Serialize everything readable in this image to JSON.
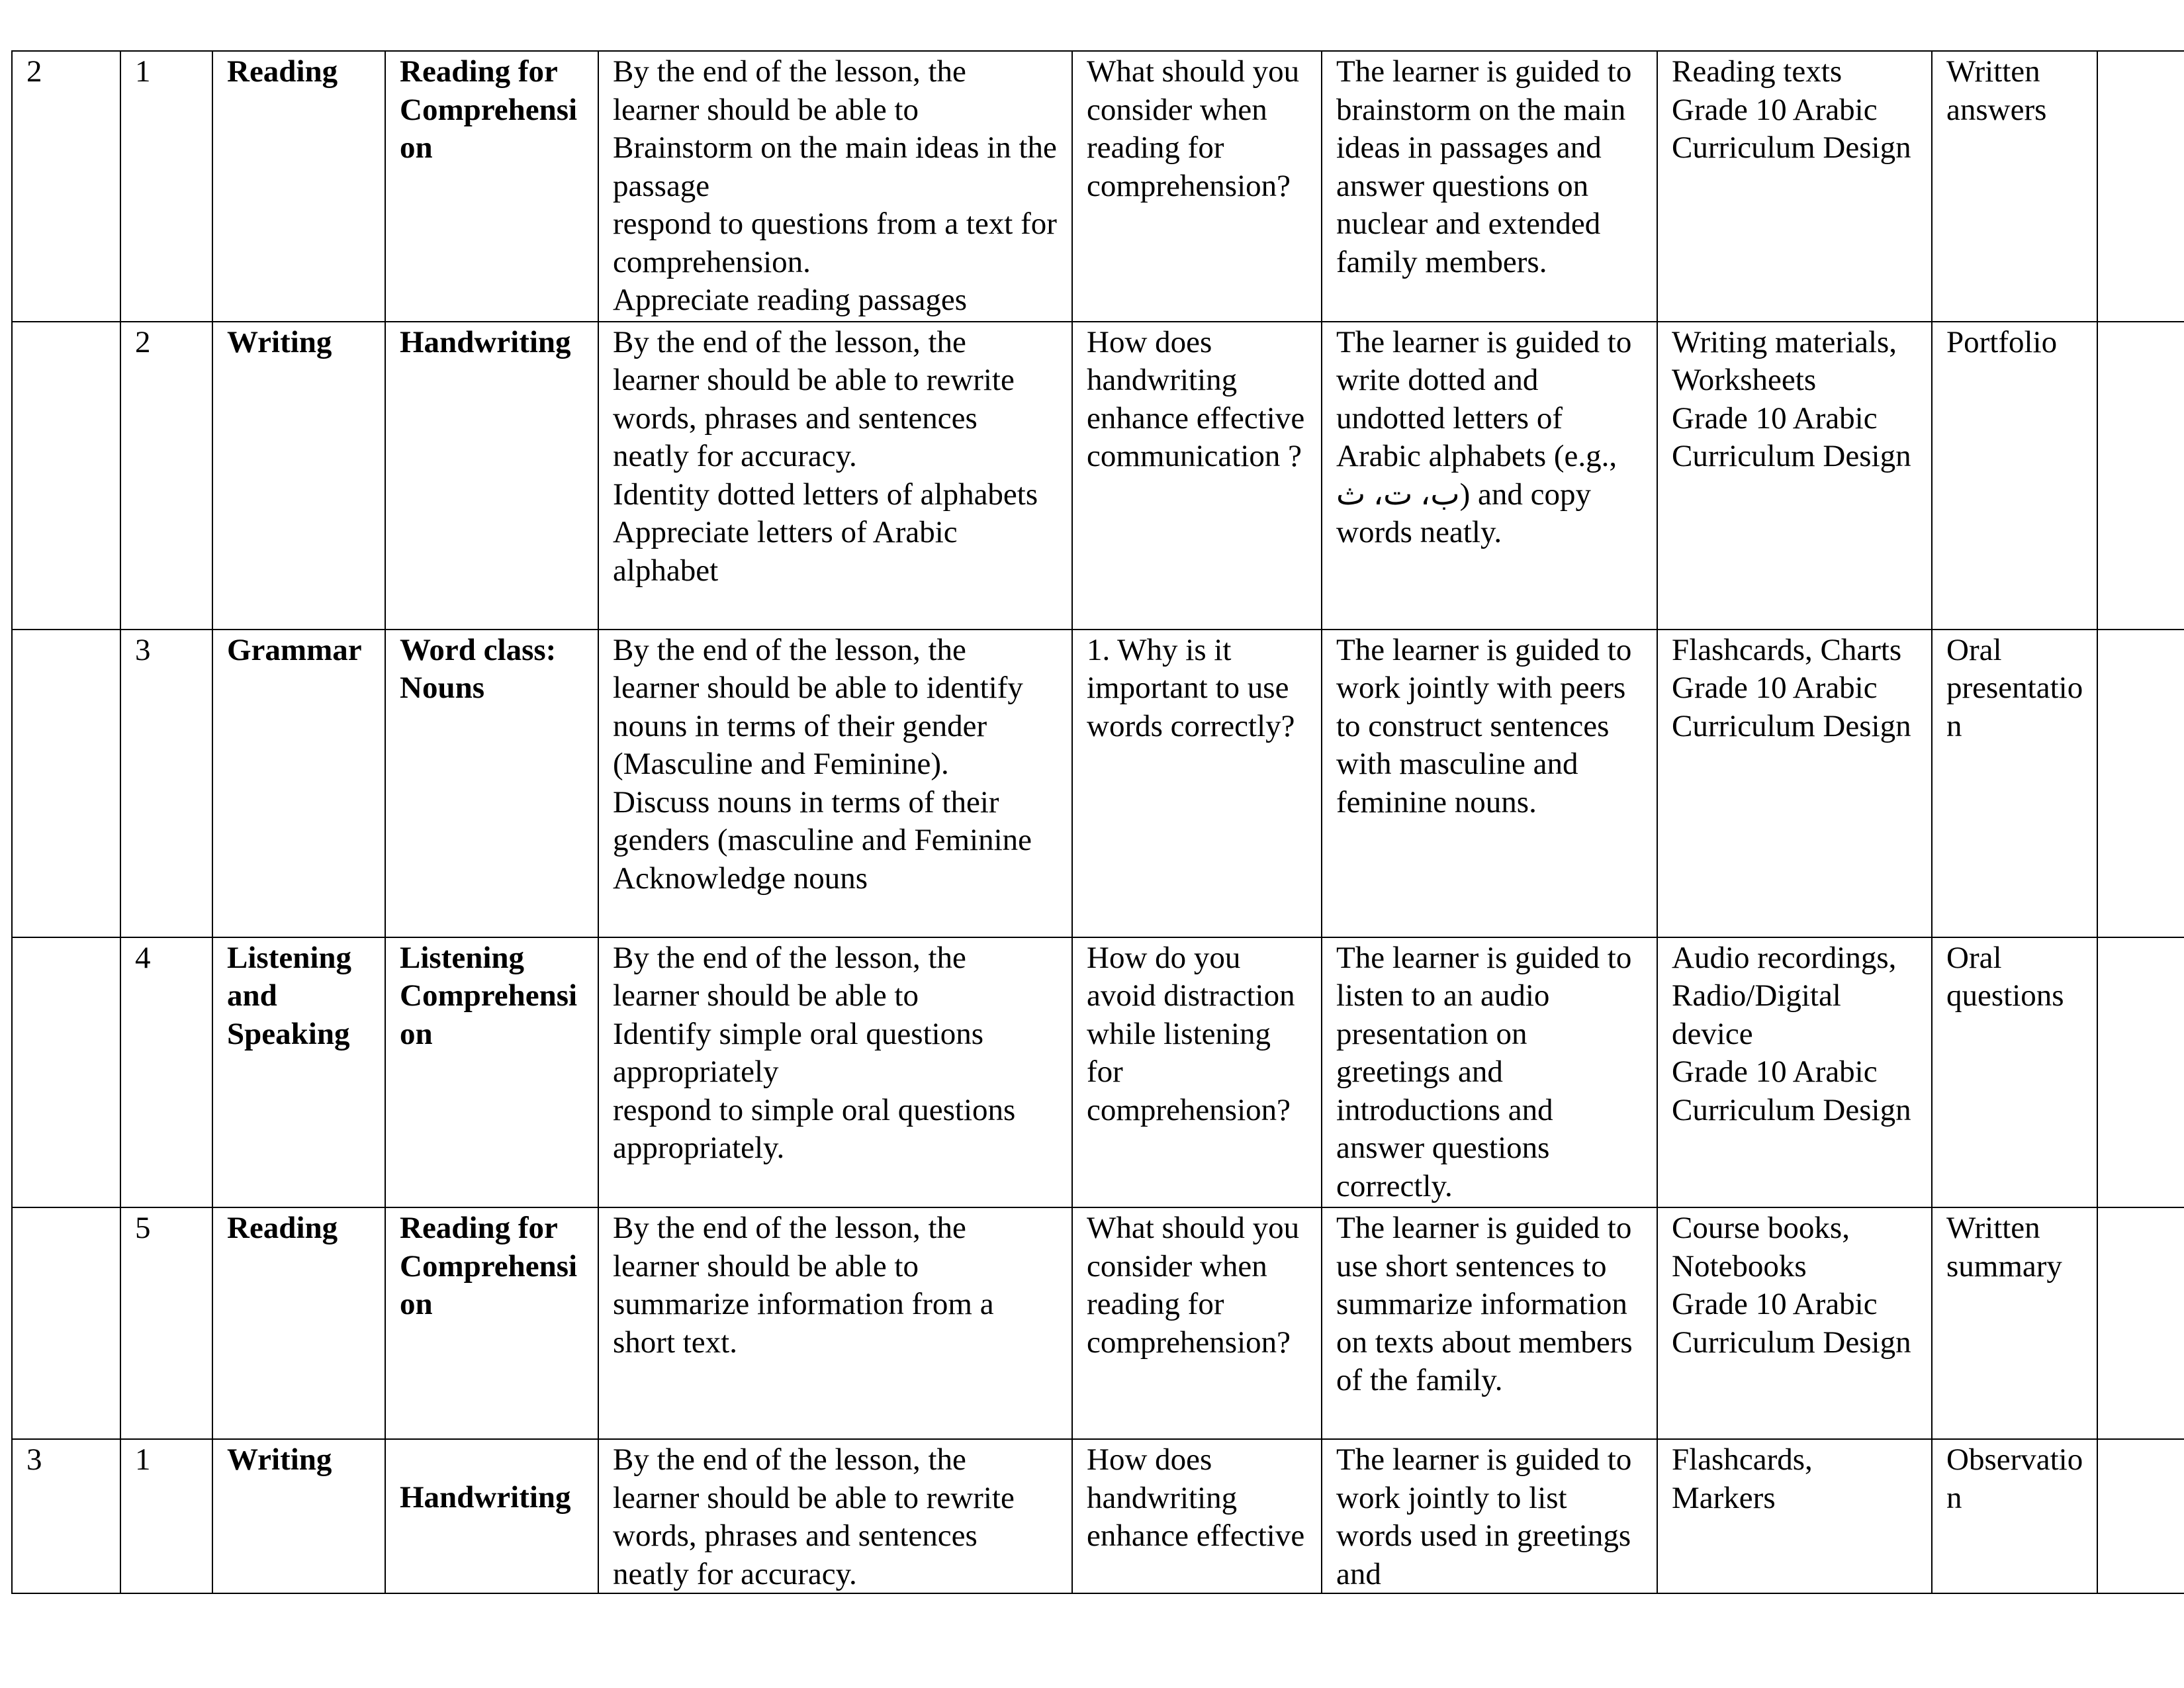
{
  "table": {
    "rows": [
      [
        [
          "2"
        ],
        [
          "1"
        ],
        [
          "Reading"
        ],
        [
          "Reading for Comprehension"
        ],
        [
          "By the end of the lesson, the learner should be able to",
          "Brainstorm on the main ideas in the passage",
          "respond to questions from a text for comprehension.",
          "Appreciate reading passages"
        ],
        [
          "What should you consider when reading for comprehension?"
        ],
        [
          "The learner is guided to brainstorm on the main ideas in passages and answer questions on nuclear and extended family members."
        ],
        [
          "Reading texts",
          "Grade 10 Arabic Curriculum Design"
        ],
        [
          "Written answers"
        ]
      ],
      [
        null,
        [
          "2"
        ],
        [
          "Writing"
        ],
        [
          "Handwriting"
        ],
        [
          "By the end of the lesson, the learner should be able to rewrite words, phrases and sentences neatly for accuracy.",
          "Identity dotted letters of alphabets",
          "Appreciate letters of Arabic alphabet"
        ],
        [
          "How does handwriting enhance effective communication ?"
        ],
        [
          "The learner is guided to write dotted and undotted letters of Arabic alphabets (e.g., ب، ت، ث) and copy words neatly."
        ],
        [
          "Writing materials, Worksheets",
          "Grade 10 Arabic Curriculum Design"
        ],
        [
          "Portfolio"
        ]
      ],
      [
        null,
        [
          "3"
        ],
        [
          "Grammar"
        ],
        [
          "Word class: Nouns"
        ],
        [
          "By the end of the lesson, the learner should be able to identify nouns in terms of their gender (Masculine and Feminine).",
          "Discuss nouns in terms of their genders (masculine and Feminine",
          "Acknowledge nouns"
        ],
        [
          "1. Why is it important to use words correctly?"
        ],
        [
          "The learner is guided to work jointly with peers to construct sentences with masculine and feminine nouns."
        ],
        [
          "Flashcards, Charts",
          "Grade 10 Arabic Curriculum Design"
        ],
        [
          "Oral presentation"
        ]
      ],
      [
        null,
        [
          "4"
        ],
        [
          "Listening and Speaking"
        ],
        [
          "Listening Comprehension"
        ],
        [
          "By the end of the lesson, the learner should be able to",
          "Identify simple oral questions appropriately",
          "respond to simple oral questions appropriately."
        ],
        [
          "How do you avoid distraction while listening for comprehension?"
        ],
        [
          "The learner is guided to listen to an audio presentation on greetings and introductions and answer questions correctly."
        ],
        [
          "Audio recordings, Radio/Digital device",
          "Grade 10 Arabic Curriculum Design"
        ],
        [
          "Oral questions"
        ]
      ],
      [
        null,
        [
          "5"
        ],
        [
          "Reading"
        ],
        [
          "Reading for Comprehension"
        ],
        [
          "By the end of the lesson, the learner should be able to summarize information from a short text."
        ],
        [
          "What should you consider when reading for comprehension?"
        ],
        [
          "The learner is guided to use short sentences to summarize information on texts about members of the family."
        ],
        [
          "Course books, Notebooks",
          "Grade 10 Arabic Curriculum Design"
        ],
        [
          "Written summary"
        ]
      ],
      [
        [
          "3"
        ],
        [
          "1"
        ],
        [
          "Writing"
        ],
        [
          "Handwriting"
        ],
        [
          "By the end of the lesson, the learner should be able to rewrite words, phrases and sentences neatly for accuracy."
        ],
        [
          "How does handwriting enhance effective"
        ],
        [
          "The learner is guided to work jointly to list words used in greetings and"
        ],
        [
          "Flashcards, Markers"
        ],
        [
          "Observation"
        ]
      ]
    ]
  }
}
